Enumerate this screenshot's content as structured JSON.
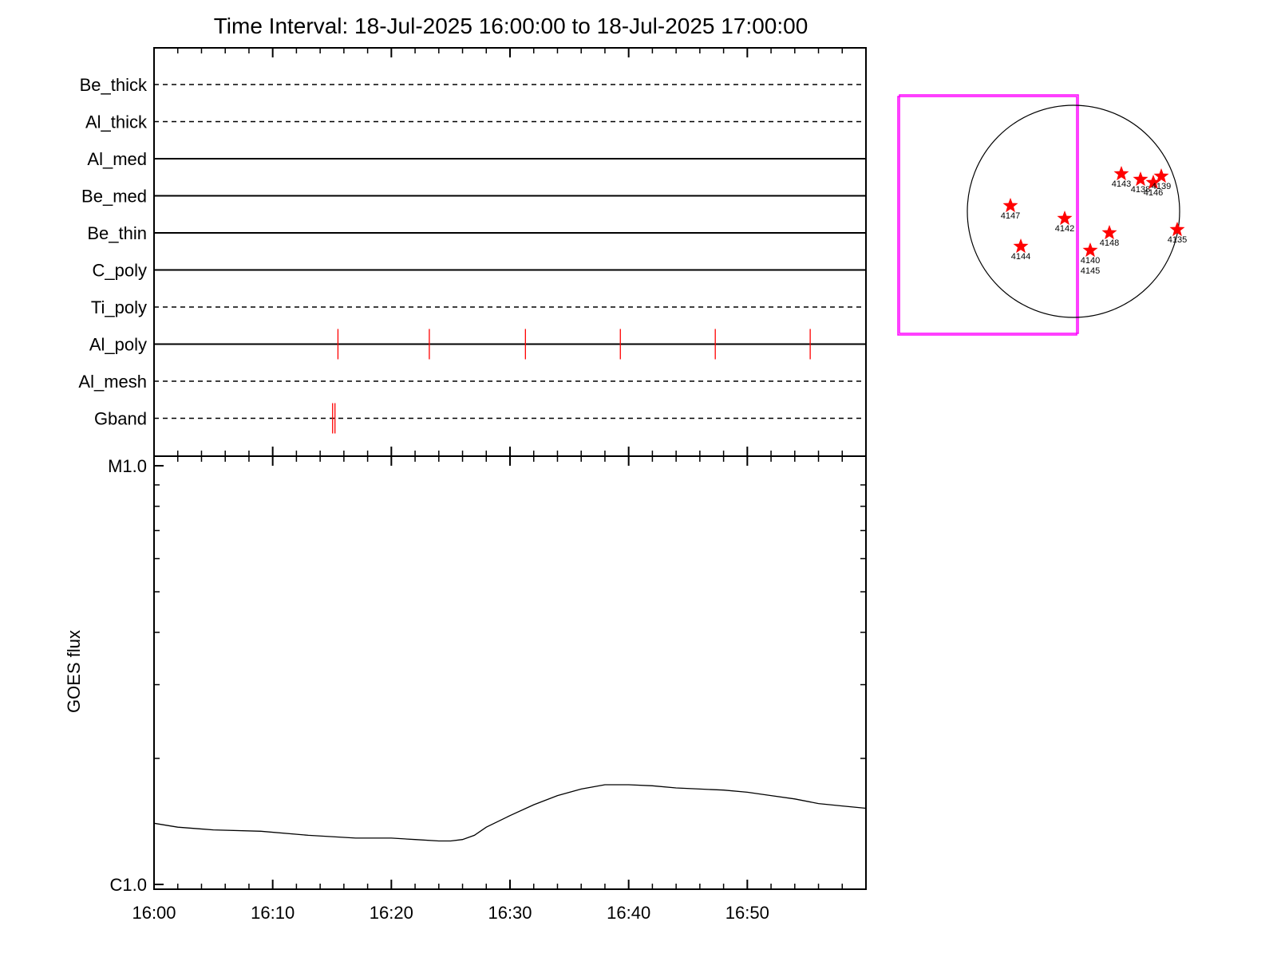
{
  "title": "Time Interval: 18-Jul-2025 16:00:00 to 18-Jul-2025 17:00:00",
  "colors": {
    "axis": "#000000",
    "marker": "#ff0000",
    "fov_box": "#ff00ff",
    "curve": "#000000"
  },
  "chart_data": [
    {
      "type": "timeline",
      "x_range": [
        "16:00",
        "17:00"
      ],
      "x_unit": "minutes after 16:00",
      "filters": [
        {
          "name": "Be_thick",
          "style": "dashed",
          "exposures": []
        },
        {
          "name": "Al_thick",
          "style": "dashed",
          "exposures": []
        },
        {
          "name": "Al_med",
          "style": "solid",
          "exposures": []
        },
        {
          "name": "Be_med",
          "style": "solid",
          "exposures": []
        },
        {
          "name": "Be_thin",
          "style": "solid",
          "exposures": []
        },
        {
          "name": "C_poly",
          "style": "solid",
          "exposures": []
        },
        {
          "name": "Ti_poly",
          "style": "dashed",
          "exposures": []
        },
        {
          "name": "Al_poly",
          "style": "solid",
          "exposures": [
            15.5,
            23.2,
            31.3,
            39.3,
            47.3,
            55.3
          ]
        },
        {
          "name": "Al_mesh",
          "style": "dashed",
          "exposures": []
        },
        {
          "name": "Gband",
          "style": "dashed",
          "exposures": [
            15.05,
            15.25
          ]
        }
      ]
    },
    {
      "type": "line",
      "ylabel": "GOES flux",
      "y_scale": "log",
      "y_range": [
        "C1.0",
        "M1.0"
      ],
      "yticks": [
        "M1.0",
        "C1.0"
      ],
      "xticks": [
        "16:00",
        "16:10",
        "16:20",
        "16:30",
        "16:40",
        "16:50"
      ],
      "x_minutes": [
        0,
        2,
        5,
        9,
        13,
        17,
        20,
        22,
        24,
        25,
        26,
        27,
        28,
        30,
        32,
        34,
        36,
        38,
        40,
        42,
        44,
        46,
        48,
        50,
        52,
        54,
        56,
        58,
        60
      ],
      "series": [
        {
          "x_minutes": [
            0,
            2,
            5,
            9,
            13,
            17,
            20,
            22,
            24,
            25,
            26,
            27,
            28,
            30,
            32,
            34,
            36,
            38,
            40,
            42,
            44,
            46,
            48,
            50,
            52,
            54,
            56,
            58,
            60
          ],
          "flux_class": [
            "C1.4",
            "C1.37",
            "C1.35",
            "C1.34",
            "C1.31",
            "C1.29",
            "C1.29",
            "C1.28",
            "C1.27",
            "C1.27",
            "C1.28",
            "C1.31",
            "C1.37",
            "C1.46",
            "C1.55",
            "C1.63",
            "C1.69",
            "C1.73",
            "C1.73",
            "C1.72",
            "C1.70",
            "C1.69",
            "C1.68",
            "C1.66",
            "C1.63",
            "C1.60",
            "C1.56",
            "C1.54",
            "C1.52"
          ]
        }
      ]
    },
    {
      "type": "scatter",
      "description_none": "",
      "active_regions": [
        {
          "label": "4147"
        },
        {
          "label": "4142"
        },
        {
          "label": "4144"
        },
        {
          "label": "4140"
        },
        {
          "label": "4145"
        },
        {
          "label": "4148"
        },
        {
          "label": "4143"
        },
        {
          "label": "4138"
        },
        {
          "label": "4146"
        },
        {
          "label": "4139"
        },
        {
          "label": "4135"
        }
      ]
    }
  ]
}
